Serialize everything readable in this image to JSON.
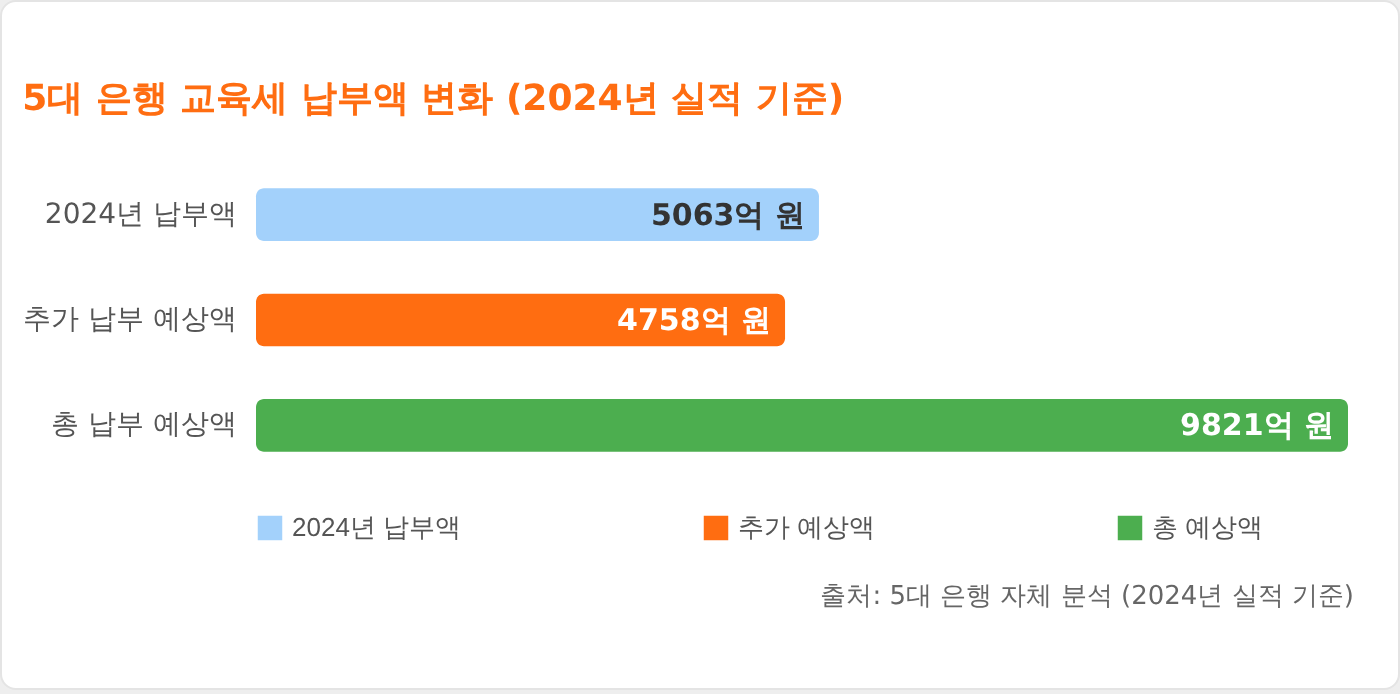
{
  "chart_data": {
    "type": "bar",
    "orientation": "horizontal",
    "title": "5대 은행 교육세 납부액 변화 (2024년 실적 기준)",
    "categories": [
      "2024년 납부액",
      "추가 납부 예상액",
      "총 납부 예상액"
    ],
    "series": [
      {
        "name": "2024년 납부액",
        "color": "#a3d1fb",
        "values": [
          5063,
          null,
          null
        ],
        "value_labels": [
          "5063억 원",
          null,
          null
        ]
      },
      {
        "name": "추가 예상액",
        "color": "#ff6d11",
        "values": [
          null,
          4758,
          null
        ],
        "value_labels": [
          null,
          "4758억 원",
          null
        ]
      },
      {
        "name": "총 예상액",
        "color": "#4cae4f",
        "values": [
          null,
          null,
          9821
        ],
        "value_labels": [
          null,
          null,
          "9821억 원"
        ]
      }
    ],
    "xlim": [
      0,
      9821
    ],
    "tick_labels": "y",
    "legend": "bottom",
    "annotations": [
      "출처: 5대 은행 자체 분석 (2024년 실적 기준)"
    ]
  }
}
